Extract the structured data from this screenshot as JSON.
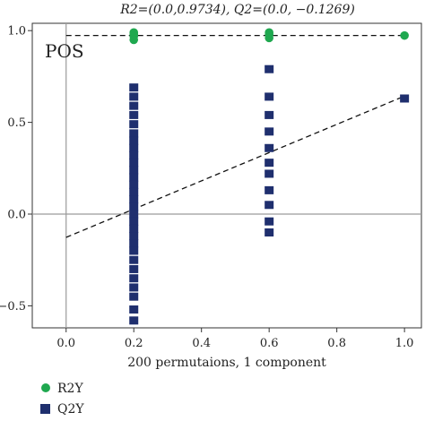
{
  "chart_data": {
    "type": "scatter",
    "title": "R2=(0.0,0.9734), Q2=(0.0, −0.1269)",
    "panel_label": "POS",
    "xlabel": "200 permutaions, 1 component",
    "ylabel": "",
    "xlim": [
      -0.1,
      1.05
    ],
    "ylim": [
      -0.62,
      1.04
    ],
    "x_ticks": [
      "0.0",
      "0.2",
      "0.4",
      "0.6",
      "0.8",
      "1.0"
    ],
    "y_ticks": [
      "1.0",
      "0.5",
      "0.0",
      "−0.5"
    ],
    "grid": false,
    "legend_position": "bottom-left",
    "series": [
      {
        "name": "R2Y",
        "color": "#1fa84f",
        "marker": "circle",
        "points": [
          {
            "x": 0.2,
            "y": 0.99
          },
          {
            "x": 0.2,
            "y": 0.98
          },
          {
            "x": 0.2,
            "y": 0.97
          },
          {
            "x": 0.2,
            "y": 0.95
          },
          {
            "x": 0.6,
            "y": 0.99
          },
          {
            "x": 0.6,
            "y": 0.98
          },
          {
            "x": 0.6,
            "y": 0.96
          },
          {
            "x": 1.0,
            "y": 0.9734
          }
        ],
        "regression": {
          "intercept": 0.9734,
          "slope": 0.0
        }
      },
      {
        "name": "Q2Y",
        "color": "#1f2f6e",
        "marker": "square",
        "points": [
          {
            "x": 0.2,
            "y": 0.69
          },
          {
            "x": 0.2,
            "y": 0.64
          },
          {
            "x": 0.2,
            "y": 0.59
          },
          {
            "x": 0.2,
            "y": 0.54
          },
          {
            "x": 0.2,
            "y": 0.49
          },
          {
            "x": 0.2,
            "y": 0.44
          },
          {
            "x": 0.2,
            "y": 0.4
          },
          {
            "x": 0.2,
            "y": 0.36
          },
          {
            "x": 0.2,
            "y": 0.32
          },
          {
            "x": 0.2,
            "y": 0.28
          },
          {
            "x": 0.2,
            "y": 0.24
          },
          {
            "x": 0.2,
            "y": 0.2
          },
          {
            "x": 0.2,
            "y": 0.16
          },
          {
            "x": 0.2,
            "y": 0.12
          },
          {
            "x": 0.2,
            "y": 0.08
          },
          {
            "x": 0.2,
            "y": 0.04
          },
          {
            "x": 0.2,
            "y": 0.0
          },
          {
            "x": 0.2,
            "y": -0.04
          },
          {
            "x": 0.2,
            "y": -0.08
          },
          {
            "x": 0.2,
            "y": -0.12
          },
          {
            "x": 0.2,
            "y": -0.16
          },
          {
            "x": 0.2,
            "y": -0.2
          },
          {
            "x": 0.2,
            "y": -0.25
          },
          {
            "x": 0.2,
            "y": -0.3
          },
          {
            "x": 0.2,
            "y": -0.35
          },
          {
            "x": 0.2,
            "y": -0.4
          },
          {
            "x": 0.2,
            "y": -0.45
          },
          {
            "x": 0.2,
            "y": -0.52
          },
          {
            "x": 0.2,
            "y": -0.58
          },
          {
            "x": 0.6,
            "y": 0.79
          },
          {
            "x": 0.6,
            "y": 0.64
          },
          {
            "x": 0.6,
            "y": 0.54
          },
          {
            "x": 0.6,
            "y": 0.45
          },
          {
            "x": 0.6,
            "y": 0.36
          },
          {
            "x": 0.6,
            "y": 0.28
          },
          {
            "x": 0.6,
            "y": 0.22
          },
          {
            "x": 0.6,
            "y": 0.13
          },
          {
            "x": 0.6,
            "y": 0.05
          },
          {
            "x": 0.6,
            "y": -0.04
          },
          {
            "x": 0.6,
            "y": -0.1
          },
          {
            "x": 1.0,
            "y": 0.63
          }
        ],
        "regression": {
          "intercept": -0.1269,
          "slope": 0.77
        }
      }
    ]
  }
}
